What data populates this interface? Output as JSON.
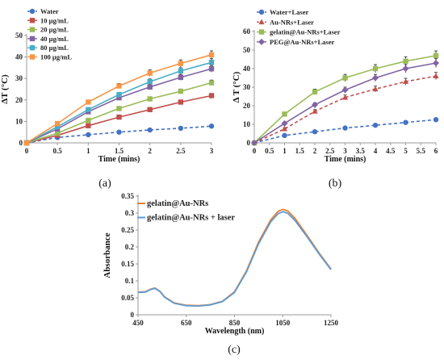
{
  "chart_data": [
    {
      "type": "line",
      "panel_label": "(a)",
      "xlabel": "Time (mins)",
      "ylabel": "ΔT (°C)",
      "xlim": [
        0,
        3
      ],
      "ylim": [
        0,
        50
      ],
      "x_ticks": [
        "0",
        "0.5",
        "1",
        "1.5",
        "2",
        "2.5",
        "3"
      ],
      "y_ticks": [
        "0",
        "10",
        "20",
        "30",
        "40",
        "50"
      ],
      "legend_position": "top-left",
      "x": [
        0,
        0.5,
        1,
        1.5,
        2,
        2.5,
        3
      ],
      "series": [
        {
          "name": "Water",
          "color": "#4472C4",
          "marker": "circle",
          "dashed": true,
          "values": [
            0,
            2.5,
            3.8,
            5,
            6,
            6.8,
            7.8
          ]
        },
        {
          "name": "10 μg/mL",
          "color": "#C0504D",
          "marker": "square",
          "dashed": false,
          "values": [
            0,
            3.5,
            8,
            12,
            15.5,
            19,
            22
          ]
        },
        {
          "name": "20 μg/mL",
          "color": "#9BBB59",
          "marker": "square",
          "dashed": false,
          "values": [
            0,
            4.5,
            10.5,
            16,
            20.5,
            24,
            28
          ]
        },
        {
          "name": "40 μg/mL",
          "color": "#8064A2",
          "marker": "square",
          "dashed": false,
          "values": [
            0,
            6.5,
            14.5,
            21,
            26,
            30.5,
            34.5
          ]
        },
        {
          "name": "80 μg/mL",
          "color": "#4BACC6",
          "marker": "square",
          "dashed": false,
          "values": [
            0,
            7.5,
            15.5,
            22.5,
            28.5,
            33.5,
            37.5
          ]
        },
        {
          "name": "100 μg/mL",
          "color": "#F79646",
          "marker": "square",
          "dashed": false,
          "values": [
            0,
            9,
            19,
            26.5,
            32.5,
            37,
            41
          ]
        }
      ]
    },
    {
      "type": "line",
      "panel_label": "(b)",
      "xlabel": "Time (mins)",
      "ylabel": "Δ T (°C)",
      "xlim": [
        0,
        6
      ],
      "ylim": [
        0,
        60
      ],
      "x_ticks": [
        "0",
        "0.5",
        "1",
        "1.5",
        "2",
        "2.5",
        "3",
        "3.5",
        "4",
        "4.5",
        "5",
        "5.5",
        "6"
      ],
      "y_ticks": [
        "0",
        "10",
        "20",
        "30",
        "40",
        "50",
        "60"
      ],
      "legend_position": "top-left",
      "x": [
        0,
        1,
        2,
        3,
        4,
        5,
        6
      ],
      "series": [
        {
          "name": "Water+Laser",
          "color": "#4472C4",
          "marker": "circle",
          "dashed": true,
          "values": [
            0,
            4,
            6,
            8,
            9.5,
            11,
            12.5
          ]
        },
        {
          "name": "Au-NRs+Laser",
          "color": "#C0504D",
          "marker": "triangle",
          "dashed": true,
          "values": [
            0,
            7.5,
            17,
            24.5,
            29,
            33,
            36
          ]
        },
        {
          "name": "gelatin@Au-NRs+Laser",
          "color": "#9BBB59",
          "marker": "square",
          "dashed": false,
          "values": [
            0,
            15.5,
            27.5,
            35,
            40,
            44,
            47
          ]
        },
        {
          "name": "PEG@Au-NRs+Laser",
          "color": "#8064A2",
          "marker": "diamond",
          "dashed": false,
          "values": [
            0,
            10.5,
            20.5,
            28.5,
            35,
            40,
            43
          ]
        }
      ]
    },
    {
      "type": "line",
      "panel_label": "(c)",
      "xlabel": "Wavelength (nm)",
      "ylabel": "Absorbance",
      "xlim": [
        450,
        1250
      ],
      "ylim": [
        0,
        0.35
      ],
      "x_ticks": [
        "450",
        "650",
        "850",
        "1050",
        "1250"
      ],
      "y_ticks": [
        "0",
        "0.05",
        "0.1",
        "0.15",
        "0.2",
        "0.25",
        "0.3",
        "0.35"
      ],
      "legend_position": "top-left",
      "x": [
        450,
        480,
        500,
        520,
        540,
        560,
        600,
        650,
        700,
        750,
        800,
        850,
        900,
        950,
        1000,
        1030,
        1050,
        1070,
        1100,
        1150,
        1200,
        1250
      ],
      "series": [
        {
          "name": "gelatin@Au-NRs",
          "color": "#ED7D31",
          "marker": "none",
          "dashed": false,
          "values": [
            0.067,
            0.068,
            0.075,
            0.079,
            0.07,
            0.053,
            0.035,
            0.028,
            0.027,
            0.03,
            0.04,
            0.068,
            0.13,
            0.215,
            0.28,
            0.305,
            0.311,
            0.307,
            0.285,
            0.235,
            0.183,
            0.135
          ]
        },
        {
          "name": "gelatin@Au-NRs + laser",
          "color": "#5B9BD5",
          "marker": "none",
          "dashed": false,
          "values": [
            0.066,
            0.067,
            0.074,
            0.078,
            0.069,
            0.052,
            0.034,
            0.027,
            0.026,
            0.029,
            0.039,
            0.066,
            0.127,
            0.21,
            0.274,
            0.298,
            0.304,
            0.3,
            0.279,
            0.231,
            0.18,
            0.133
          ]
        }
      ]
    }
  ]
}
